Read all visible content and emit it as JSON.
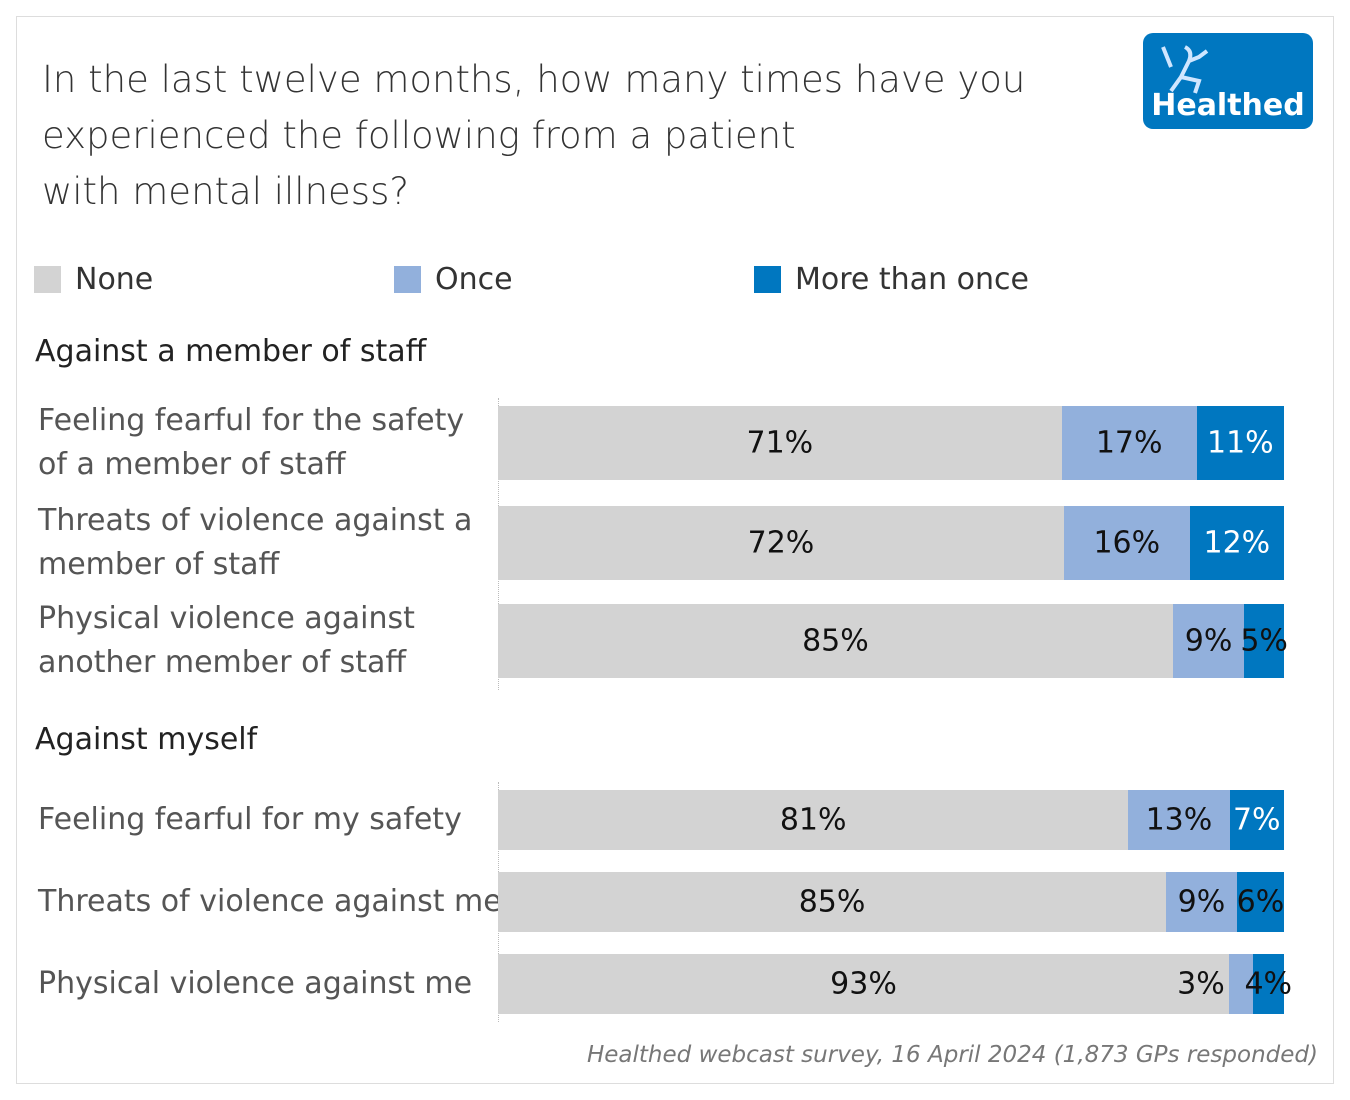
{
  "title": "In the last twelve months, how many times have you experienced the following from a patient with mental illness?",
  "title_lines": [
    "In the last twelve months, how many times have you",
    "experienced the following from a patient",
    "with mental illness?"
  ],
  "logo_text": "Healthed",
  "source": "Healthed webcast survey, 16 April 2024 (1,873 GPs responded)",
  "chart_data": {
    "type": "bar",
    "orientation": "horizontal-stacked-100",
    "legend": [
      "None",
      "Once",
      "More than once"
    ],
    "legend_placement": "top",
    "colors": {
      "None": "#d3d3d3",
      "Once": "#92b0dc",
      "More than once": "#0077c0"
    },
    "groups": [
      {
        "name": "Against a member of staff",
        "rows": [
          {
            "label": "Feeling fearful for the safety of a member of staff",
            "values": [
              71,
              17,
              11
            ]
          },
          {
            "label": "Threats of violence against a member of staff",
            "values": [
              72,
              16,
              12
            ]
          },
          {
            "label": "Physical violence against another member of staff",
            "values": [
              85,
              9,
              5
            ]
          }
        ]
      },
      {
        "name": "Against myself",
        "rows": [
          {
            "label": "Feeling fearful for my safety",
            "values": [
              81,
              13,
              7
            ]
          },
          {
            "label": "Threats of violence against me",
            "values": [
              85,
              9,
              6
            ]
          },
          {
            "label": "Physical violence against me",
            "values": [
              93,
              3,
              4
            ]
          }
        ]
      }
    ]
  }
}
